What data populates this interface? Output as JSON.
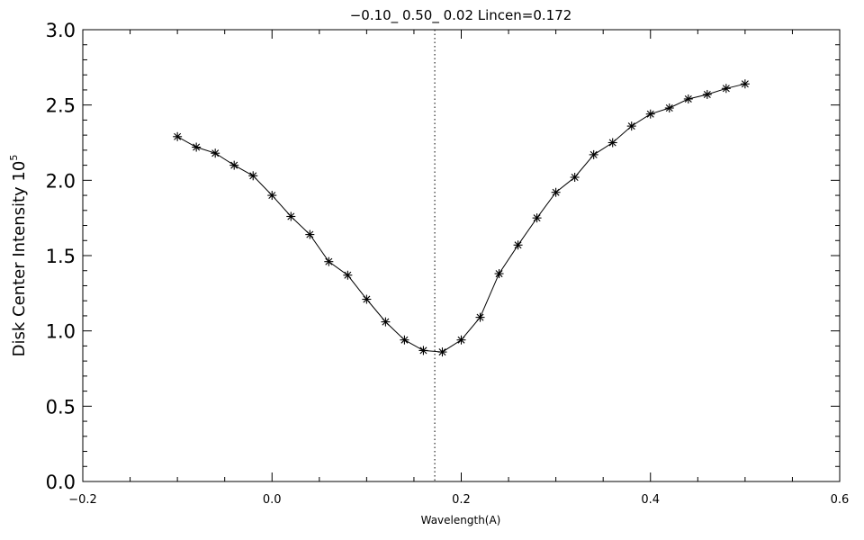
{
  "chart_data": {
    "type": "line",
    "title": "−0.10_ 0.50_ 0.02   Lincen=0.172",
    "xlabel": "Wavelength(A)",
    "ylabel": "Disk Center Intensity 10",
    "ylabel_exponent": "5",
    "xlim": [
      -0.2,
      0.6
    ],
    "ylim": [
      0.0,
      3.0
    ],
    "x_ticks": [
      -0.2,
      0.0,
      0.2,
      0.4,
      0.6
    ],
    "x_tick_labels": [
      "−0.2",
      "0.0",
      "0.2",
      "0.4",
      "0.6"
    ],
    "y_ticks": [
      0.0,
      0.5,
      1.0,
      1.5,
      2.0,
      2.5,
      3.0
    ],
    "y_tick_labels": [
      "0.0",
      "0.5",
      "1.0",
      "1.5",
      "2.0",
      "2.5",
      "3.0"
    ],
    "grid": false,
    "marker": "asterisk",
    "vertical_line": {
      "x": 0.172,
      "style": "dotted"
    },
    "series": [
      {
        "x": [
          -0.1,
          -0.08,
          -0.06,
          -0.04,
          -0.02,
          0.0,
          0.02,
          0.04,
          0.06,
          0.08,
          0.1,
          0.12,
          0.14,
          0.16,
          0.18,
          0.2,
          0.22,
          0.24,
          0.26,
          0.28,
          0.3,
          0.32,
          0.34,
          0.36,
          0.38,
          0.4,
          0.42,
          0.44,
          0.46,
          0.48,
          0.5
        ],
        "y": [
          2.29,
          2.22,
          2.18,
          2.1,
          2.03,
          1.9,
          1.76,
          1.64,
          1.46,
          1.37,
          1.21,
          1.06,
          0.94,
          0.87,
          0.86,
          0.94,
          1.09,
          1.38,
          1.57,
          1.75,
          1.92,
          2.02,
          2.17,
          2.25,
          2.36,
          2.44,
          2.48,
          2.54,
          2.57,
          2.61,
          2.64
        ]
      }
    ]
  }
}
